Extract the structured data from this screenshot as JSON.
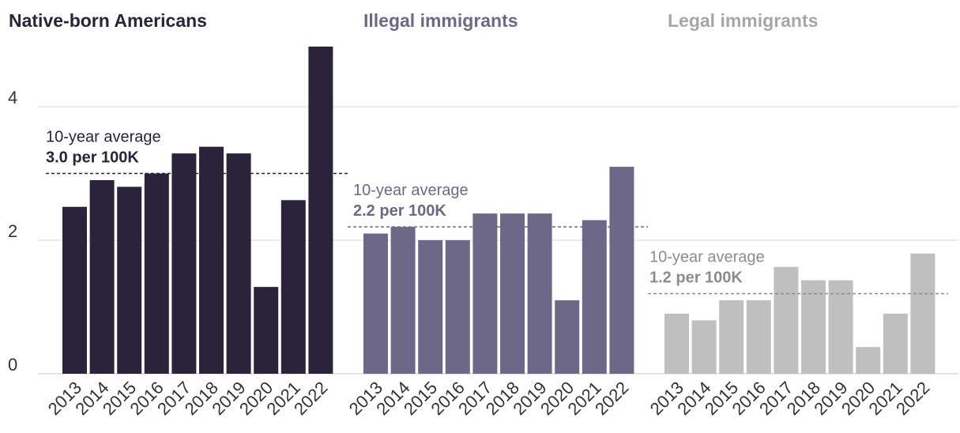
{
  "chart_data": {
    "type": "bar",
    "categories": [
      "2013",
      "2014",
      "2015",
      "2016",
      "2017",
      "2018",
      "2019",
      "2020",
      "2021",
      "2022"
    ],
    "y_ticks": [
      0,
      2,
      4
    ],
    "ylim": [
      0,
      4.9
    ],
    "grid": true,
    "average_label": "10-year average",
    "panels": [
      {
        "title": "Native-born Americans",
        "color": "#29243a",
        "values": [
          2.5,
          2.9,
          2.8,
          3.0,
          3.3,
          3.4,
          3.3,
          1.3,
          2.6,
          4.9
        ],
        "average": 3.0,
        "average_text": "3.0 per 100K"
      },
      {
        "title": "Illegal immigrants",
        "color": "#6e6888",
        "values": [
          2.1,
          2.2,
          2.0,
          2.0,
          2.4,
          2.4,
          2.4,
          1.1,
          2.3,
          3.1
        ],
        "average": 2.2,
        "average_text": "2.2 per 100K"
      },
      {
        "title": "Legal immigrants",
        "color": "#bfbfbf",
        "title_color": "#a6a6a6",
        "label_color": "#8c8c8c",
        "values": [
          0.9,
          0.8,
          1.1,
          1.1,
          1.6,
          1.4,
          1.4,
          0.4,
          0.9,
          1.8
        ],
        "average": 1.2,
        "average_text": "1.2 per 100K"
      }
    ]
  }
}
